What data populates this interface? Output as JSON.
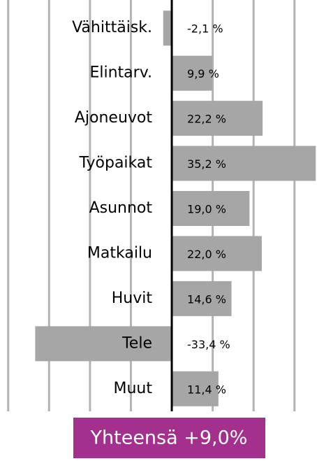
{
  "chart_data": {
    "type": "barh",
    "categories": [
      "Vähittäisk.",
      "Elintarv.",
      "Ajoneuvot",
      "Työpaikat",
      "Asunnot",
      "Matkailu",
      "Huvit",
      "Tele",
      "Muut"
    ],
    "values": [
      -2.1,
      9.9,
      22.2,
      35.2,
      19.0,
      22.0,
      14.6,
      -33.4,
      11.4
    ],
    "value_labels": [
      "-2,1 %",
      "9,9 %",
      "22,2 %",
      "35,2 %",
      "19,0 %",
      "22,0 %",
      "14,6 %",
      "-33,4 %",
      "11,4 %"
    ],
    "color": "#a6a6a6",
    "xlim": [
      -42,
      35.5
    ],
    "xticks": [
      -40,
      -30,
      -20,
      -10,
      10,
      20,
      30
    ],
    "grid": true,
    "annotation": "Yhteensä +9,0%",
    "annotation_color": "#a3308c"
  }
}
